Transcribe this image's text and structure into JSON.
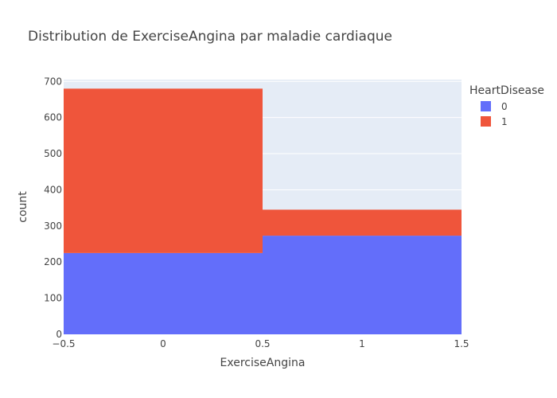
{
  "chart_data": {
    "type": "bar",
    "title": "Distribution de ExerciseAngina par maladie cardiaque",
    "xlabel": "ExerciseAngina",
    "ylabel": "count",
    "barmode": "stack",
    "bins": [
      {
        "x0": -0.5,
        "x1": 0.5
      },
      {
        "x0": 0.5,
        "x1": 1.5
      }
    ],
    "series": [
      {
        "name": "0",
        "color": "#636efa",
        "values": [
          225,
          273
        ]
      },
      {
        "name": "1",
        "color": "#ef553b",
        "values": [
          455,
          72
        ]
      }
    ],
    "xlim": [
      -0.5,
      1.5
    ],
    "ylim": [
      0,
      705
    ],
    "x_ticks": [
      -0.5,
      0,
      0.5,
      1,
      1.5
    ],
    "x_tick_labels": [
      "−0.5",
      "0",
      "0.5",
      "1",
      "1.5"
    ],
    "y_ticks": [
      0,
      100,
      200,
      300,
      400,
      500,
      600,
      700
    ],
    "legend_title": "HeartDisease",
    "legend_position": "top-right",
    "grid": true,
    "plot_background": "#e5ecf6"
  }
}
